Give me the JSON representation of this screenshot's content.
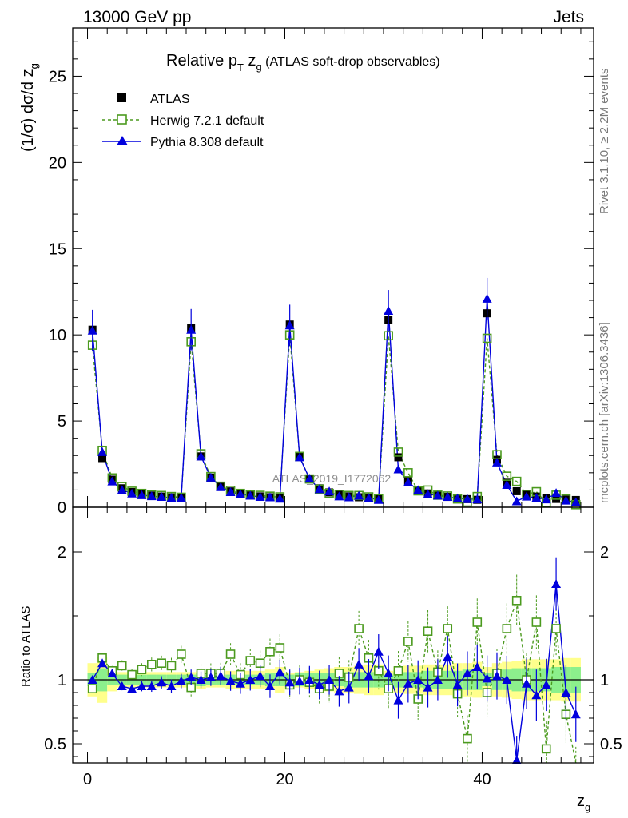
{
  "header": {
    "left": "13000 GeV pp",
    "right": "Jets"
  },
  "title": {
    "main": "Relative p",
    "sub_T": "T",
    "z": " z",
    "sub_g": "g",
    "rest": " (ATLAS soft-drop observables)"
  },
  "side_texts": {
    "rivet": "Rivet 3.1.10, ≥ 2.2M events",
    "mcplots": "mcplots.cern.ch [arXiv:1306.3436]"
  },
  "watermark": "ATLAS_2019_I1772062",
  "axes": {
    "top_ylabel": "(1/σ) dσ/d z",
    "top_ylabel_sub": "g",
    "bottom_ylabel": "Ratio to ATLAS",
    "xlabel": "z",
    "xlabel_sub": "g"
  },
  "legend": [
    {
      "label": "ATLAS",
      "key": "atlas"
    },
    {
      "label": "Herwig 7.2.1 default",
      "key": "herwig"
    },
    {
      "label": "Pythia 8.308 default",
      "key": "pythia"
    }
  ],
  "colors": {
    "atlas": "#000000",
    "herwig": "#4b9a1e",
    "pythia": "#0000dd",
    "band_outer": "#ffff8c",
    "band_inner": "#8cf08c"
  },
  "chart_data": {
    "type": "line",
    "x": [
      0.5,
      1.5,
      2.5,
      3.5,
      4.5,
      5.5,
      6.5,
      7.5,
      8.5,
      9.5,
      10.5,
      11.5,
      12.5,
      13.5,
      14.5,
      15.5,
      16.5,
      17.5,
      18.5,
      19.5,
      20.5,
      21.5,
      22.5,
      23.5,
      24.5,
      25.5,
      26.5,
      27.5,
      28.5,
      29.5,
      30.5,
      31.5,
      32.5,
      33.5,
      34.5,
      35.5,
      36.5,
      37.5,
      38.5,
      39.5,
      40.5,
      41.5,
      42.5,
      43.5,
      44.5,
      45.5,
      46.5,
      47.5,
      48.5,
      49.5
    ],
    "xlim": [
      -1.5,
      51.3
    ],
    "xticks": [
      0,
      20,
      40
    ],
    "top": {
      "ylim": [
        0,
        27.8
      ],
      "yticks": [
        0,
        5,
        10,
        15,
        20,
        25
      ],
      "series": [
        {
          "name": "ATLAS",
          "values": [
            10.3,
            2.85,
            1.6,
            1.1,
            0.88,
            0.75,
            0.68,
            0.62,
            0.57,
            0.54,
            10.4,
            2.95,
            1.72,
            1.18,
            0.92,
            0.78,
            0.69,
            0.63,
            0.58,
            0.54,
            10.6,
            2.95,
            1.66,
            1.1,
            0.86,
            0.72,
            0.63,
            0.58,
            0.53,
            0.49,
            10.85,
            2.9,
            1.52,
            0.98,
            0.8,
            0.68,
            0.6,
            0.52,
            0.47,
            0.43,
            11.25,
            2.75,
            1.42,
            0.93,
            0.74,
            0.62,
            0.54,
            0.48,
            0.44,
            0.42
          ]
        },
        {
          "name": "Herwig 7.2.1 default",
          "values": [
            9.4,
            3.3,
            1.7,
            1.2,
            0.93,
            0.8,
            0.72,
            0.68,
            0.62,
            0.58,
            9.6,
            3.1,
            1.78,
            1.22,
            0.98,
            0.8,
            0.72,
            0.69,
            0.64,
            0.6,
            10.0,
            2.95,
            1.64,
            1.05,
            0.8,
            0.75,
            0.68,
            0.68,
            0.6,
            0.5,
            9.95,
            3.2,
            2.0,
            0.95,
            1.0,
            0.7,
            0.65,
            0.48,
            0.3,
            0.62,
            9.8,
            3.05,
            1.8,
            1.5,
            0.75,
            0.9,
            0.25,
            0.7,
            0.48,
            0.15
          ]
        },
        {
          "name": "Pythia 8.308 default",
          "values": [
            10.25,
            3.2,
            1.5,
            1.0,
            0.8,
            0.7,
            0.64,
            0.6,
            0.55,
            0.55,
            10.3,
            2.95,
            1.72,
            1.17,
            0.88,
            0.76,
            0.67,
            0.6,
            0.58,
            0.5,
            10.55,
            2.9,
            1.66,
            1.05,
            0.92,
            0.63,
            0.58,
            0.67,
            0.54,
            0.43,
            11.4,
            2.2,
            1.45,
            1.0,
            0.76,
            0.68,
            0.6,
            0.52,
            0.48,
            0.46,
            12.1,
            2.6,
            1.3,
            0.35,
            0.62,
            0.55,
            0.46,
            0.83,
            0.39,
            0.3
          ]
        }
      ]
    },
    "ratio": {
      "ylim": [
        0.35,
        2.35
      ],
      "yticks": [
        0.5,
        1,
        2
      ],
      "yticklabels": [
        "0.5",
        "1",
        "2"
      ],
      "series": [
        {
          "name": "Herwig 7.2.1 default",
          "values": [
            0.93,
            1.17,
            1.07,
            1.11,
            1.04,
            1.08,
            1.12,
            1.13,
            1.11,
            1.2,
            0.94,
            1.05,
            1.05,
            1.05,
            1.2,
            1.04,
            1.15,
            1.13,
            1.22,
            1.25,
            0.96,
            1.0,
            0.98,
            0.93,
            0.95,
            1.05,
            1.02,
            1.4,
            1.17,
            1.07,
            0.93,
            1.07,
            1.3,
            0.85,
            1.38,
            1.06,
            1.4,
            0.89,
            0.54,
            1.45,
            0.9,
            1.05,
            1.4,
            1.62,
            1.0,
            1.45,
            0.46,
            1.4,
            0.73,
            0.25
          ]
        },
        {
          "name": "Pythia 8.308 default",
          "values": [
            1.0,
            1.13,
            1.05,
            0.95,
            0.93,
            0.95,
            0.95,
            0.98,
            0.95,
            0.99,
            1.02,
            1.0,
            1.02,
            1.03,
            0.99,
            0.97,
            1.0,
            1.03,
            0.95,
            1.06,
            0.98,
            0.99,
            1.0,
            0.96,
            1.0,
            0.91,
            0.94,
            1.12,
            1.03,
            1.22,
            1.05,
            0.84,
            0.97,
            1.0,
            0.94,
            1.0,
            1.18,
            0.96,
            1.05,
            1.1,
            1.01,
            1.03,
            1.0,
            0.37,
            0.97,
            0.88,
            0.96,
            1.75,
            0.9,
            0.73
          ]
        }
      ],
      "bands": {
        "outer": [
          0.13,
          0.18,
          0.09,
          0.06,
          0.06,
          0.06,
          0.06,
          0.06,
          0.06,
          0.06,
          0.06,
          0.07,
          0.06,
          0.06,
          0.07,
          0.07,
          0.07,
          0.07,
          0.08,
          0.1,
          0.05,
          0.06,
          0.07,
          0.08,
          0.09,
          0.1,
          0.1,
          0.11,
          0.12,
          0.12,
          0.07,
          0.1,
          0.11,
          0.11,
          0.12,
          0.12,
          0.12,
          0.13,
          0.13,
          0.14,
          0.1,
          0.13,
          0.14,
          0.15,
          0.16,
          0.16,
          0.16,
          0.16,
          0.17,
          0.17
        ],
        "inner": [
          0.05,
          0.09,
          0.04,
          0.04,
          0.04,
          0.04,
          0.04,
          0.04,
          0.04,
          0.04,
          0.04,
          0.05,
          0.04,
          0.04,
          0.04,
          0.04,
          0.04,
          0.04,
          0.05,
          0.05,
          0.04,
          0.05,
          0.05,
          0.05,
          0.05,
          0.05,
          0.06,
          0.06,
          0.06,
          0.06,
          0.04,
          0.06,
          0.06,
          0.06,
          0.07,
          0.07,
          0.07,
          0.07,
          0.08,
          0.08,
          0.05,
          0.08,
          0.08,
          0.09,
          0.09,
          0.09,
          0.09,
          0.1,
          0.1,
          0.1
        ]
      }
    }
  }
}
